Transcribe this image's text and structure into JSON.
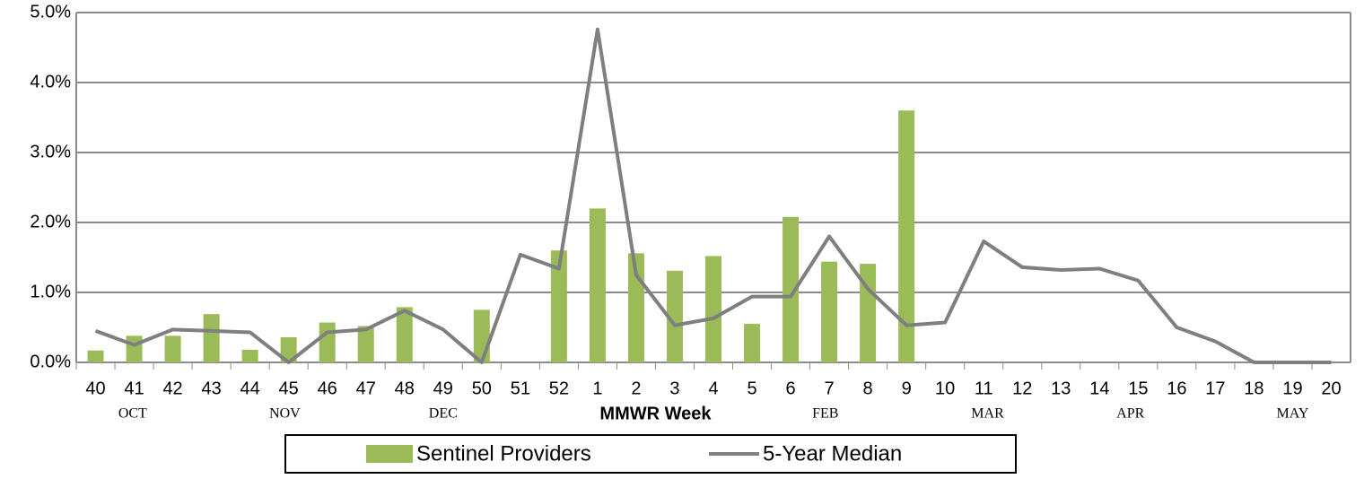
{
  "chart_data": {
    "type": "bar-line",
    "x_label": "MMWR Week",
    "categories": [
      "40",
      "41",
      "42",
      "43",
      "44",
      "45",
      "46",
      "47",
      "48",
      "49",
      "50",
      "51",
      "52",
      "1",
      "2",
      "3",
      "4",
      "5",
      "6",
      "7",
      "8",
      "9",
      "10",
      "11",
      "12",
      "13",
      "14",
      "15",
      "16",
      "17",
      "18",
      "19",
      "20"
    ],
    "month_labels": [
      "OCT",
      "NOV",
      "DEC",
      "FEB",
      "MAR",
      "APR",
      "MAY"
    ],
    "series": [
      {
        "name": "Sentinel Providers",
        "type": "bar",
        "color": "#9bbb59",
        "values": [
          0.17,
          0.38,
          0.38,
          0.69,
          0.18,
          0.36,
          0.57,
          0.52,
          0.79,
          null,
          0.75,
          null,
          1.6,
          2.2,
          1.56,
          1.31,
          1.52,
          0.55,
          2.08,
          1.44,
          1.41,
          3.6,
          null,
          null,
          null,
          null,
          null,
          null,
          null,
          null,
          null,
          null,
          null
        ]
      },
      {
        "name": "5-Year Median",
        "type": "line",
        "color": "#7f7f7f",
        "values": [
          0.45,
          0.25,
          0.47,
          0.45,
          0.43,
          0.0,
          0.43,
          0.47,
          0.74,
          0.47,
          0.0,
          1.54,
          1.34,
          4.76,
          1.25,
          0.53,
          0.63,
          0.94,
          0.94,
          1.8,
          1.05,
          0.53,
          0.57,
          1.73,
          1.36,
          1.32,
          1.34,
          1.17,
          0.5,
          0.3,
          0.0,
          0.0,
          0.0
        ]
      }
    ],
    "ylim": [
      0,
      5
    ],
    "yticks": [
      {
        "value": 0,
        "label": "0.0%"
      },
      {
        "value": 1,
        "label": "1.0%"
      },
      {
        "value": 2,
        "label": "2.0%"
      },
      {
        "value": 3,
        "label": "3.0%"
      },
      {
        "value": 4,
        "label": "4.0%"
      },
      {
        "value": 5,
        "label": "5.0%"
      }
    ],
    "grid": true
  }
}
